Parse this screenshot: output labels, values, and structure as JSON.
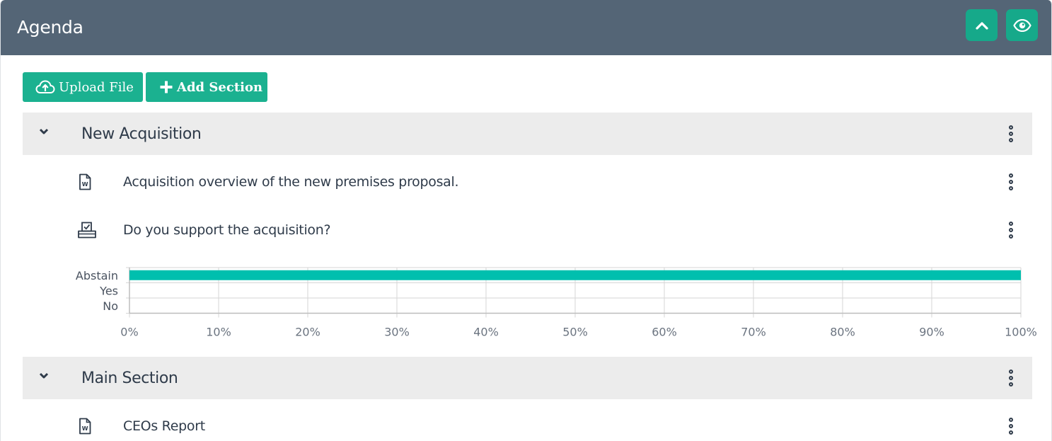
{
  "header": {
    "title": "Agenda",
    "collapse_icon": "chevron-up-icon",
    "view_icon": "eye-icon"
  },
  "toolbar": {
    "upload_label": "Upload File",
    "upload_icon": "cloud-upload-icon",
    "add_section_label": "Add Section",
    "add_section_icon": "plus-icon"
  },
  "sections": [
    {
      "title": "New Acquisition",
      "items": [
        {
          "type": "document",
          "icon": "word-document-icon",
          "text": "Acquisition overview of the new premises proposal."
        },
        {
          "type": "vote",
          "icon": "ballot-box-icon",
          "text": "Do you support the acquisition?"
        }
      ]
    },
    {
      "title": "Main Section",
      "items": [
        {
          "type": "document",
          "icon": "word-document-icon",
          "text": "CEOs Report"
        }
      ]
    }
  ],
  "chart_data": {
    "type": "bar",
    "orientation": "horizontal",
    "categories": [
      "Abstain",
      "Yes",
      "No"
    ],
    "values": [
      100,
      0,
      0
    ],
    "xlim": [
      0,
      100
    ],
    "xticks": [
      "0%",
      "10%",
      "20%",
      "30%",
      "40%",
      "50%",
      "60%",
      "70%",
      "80%",
      "90%",
      "100%"
    ],
    "grid": true,
    "bar_color": "#00bfae"
  },
  "colors": {
    "header_bg": "#546576",
    "accent": "#1bb190",
    "section_bg": "#ececec",
    "text": "#2f3b4a"
  }
}
